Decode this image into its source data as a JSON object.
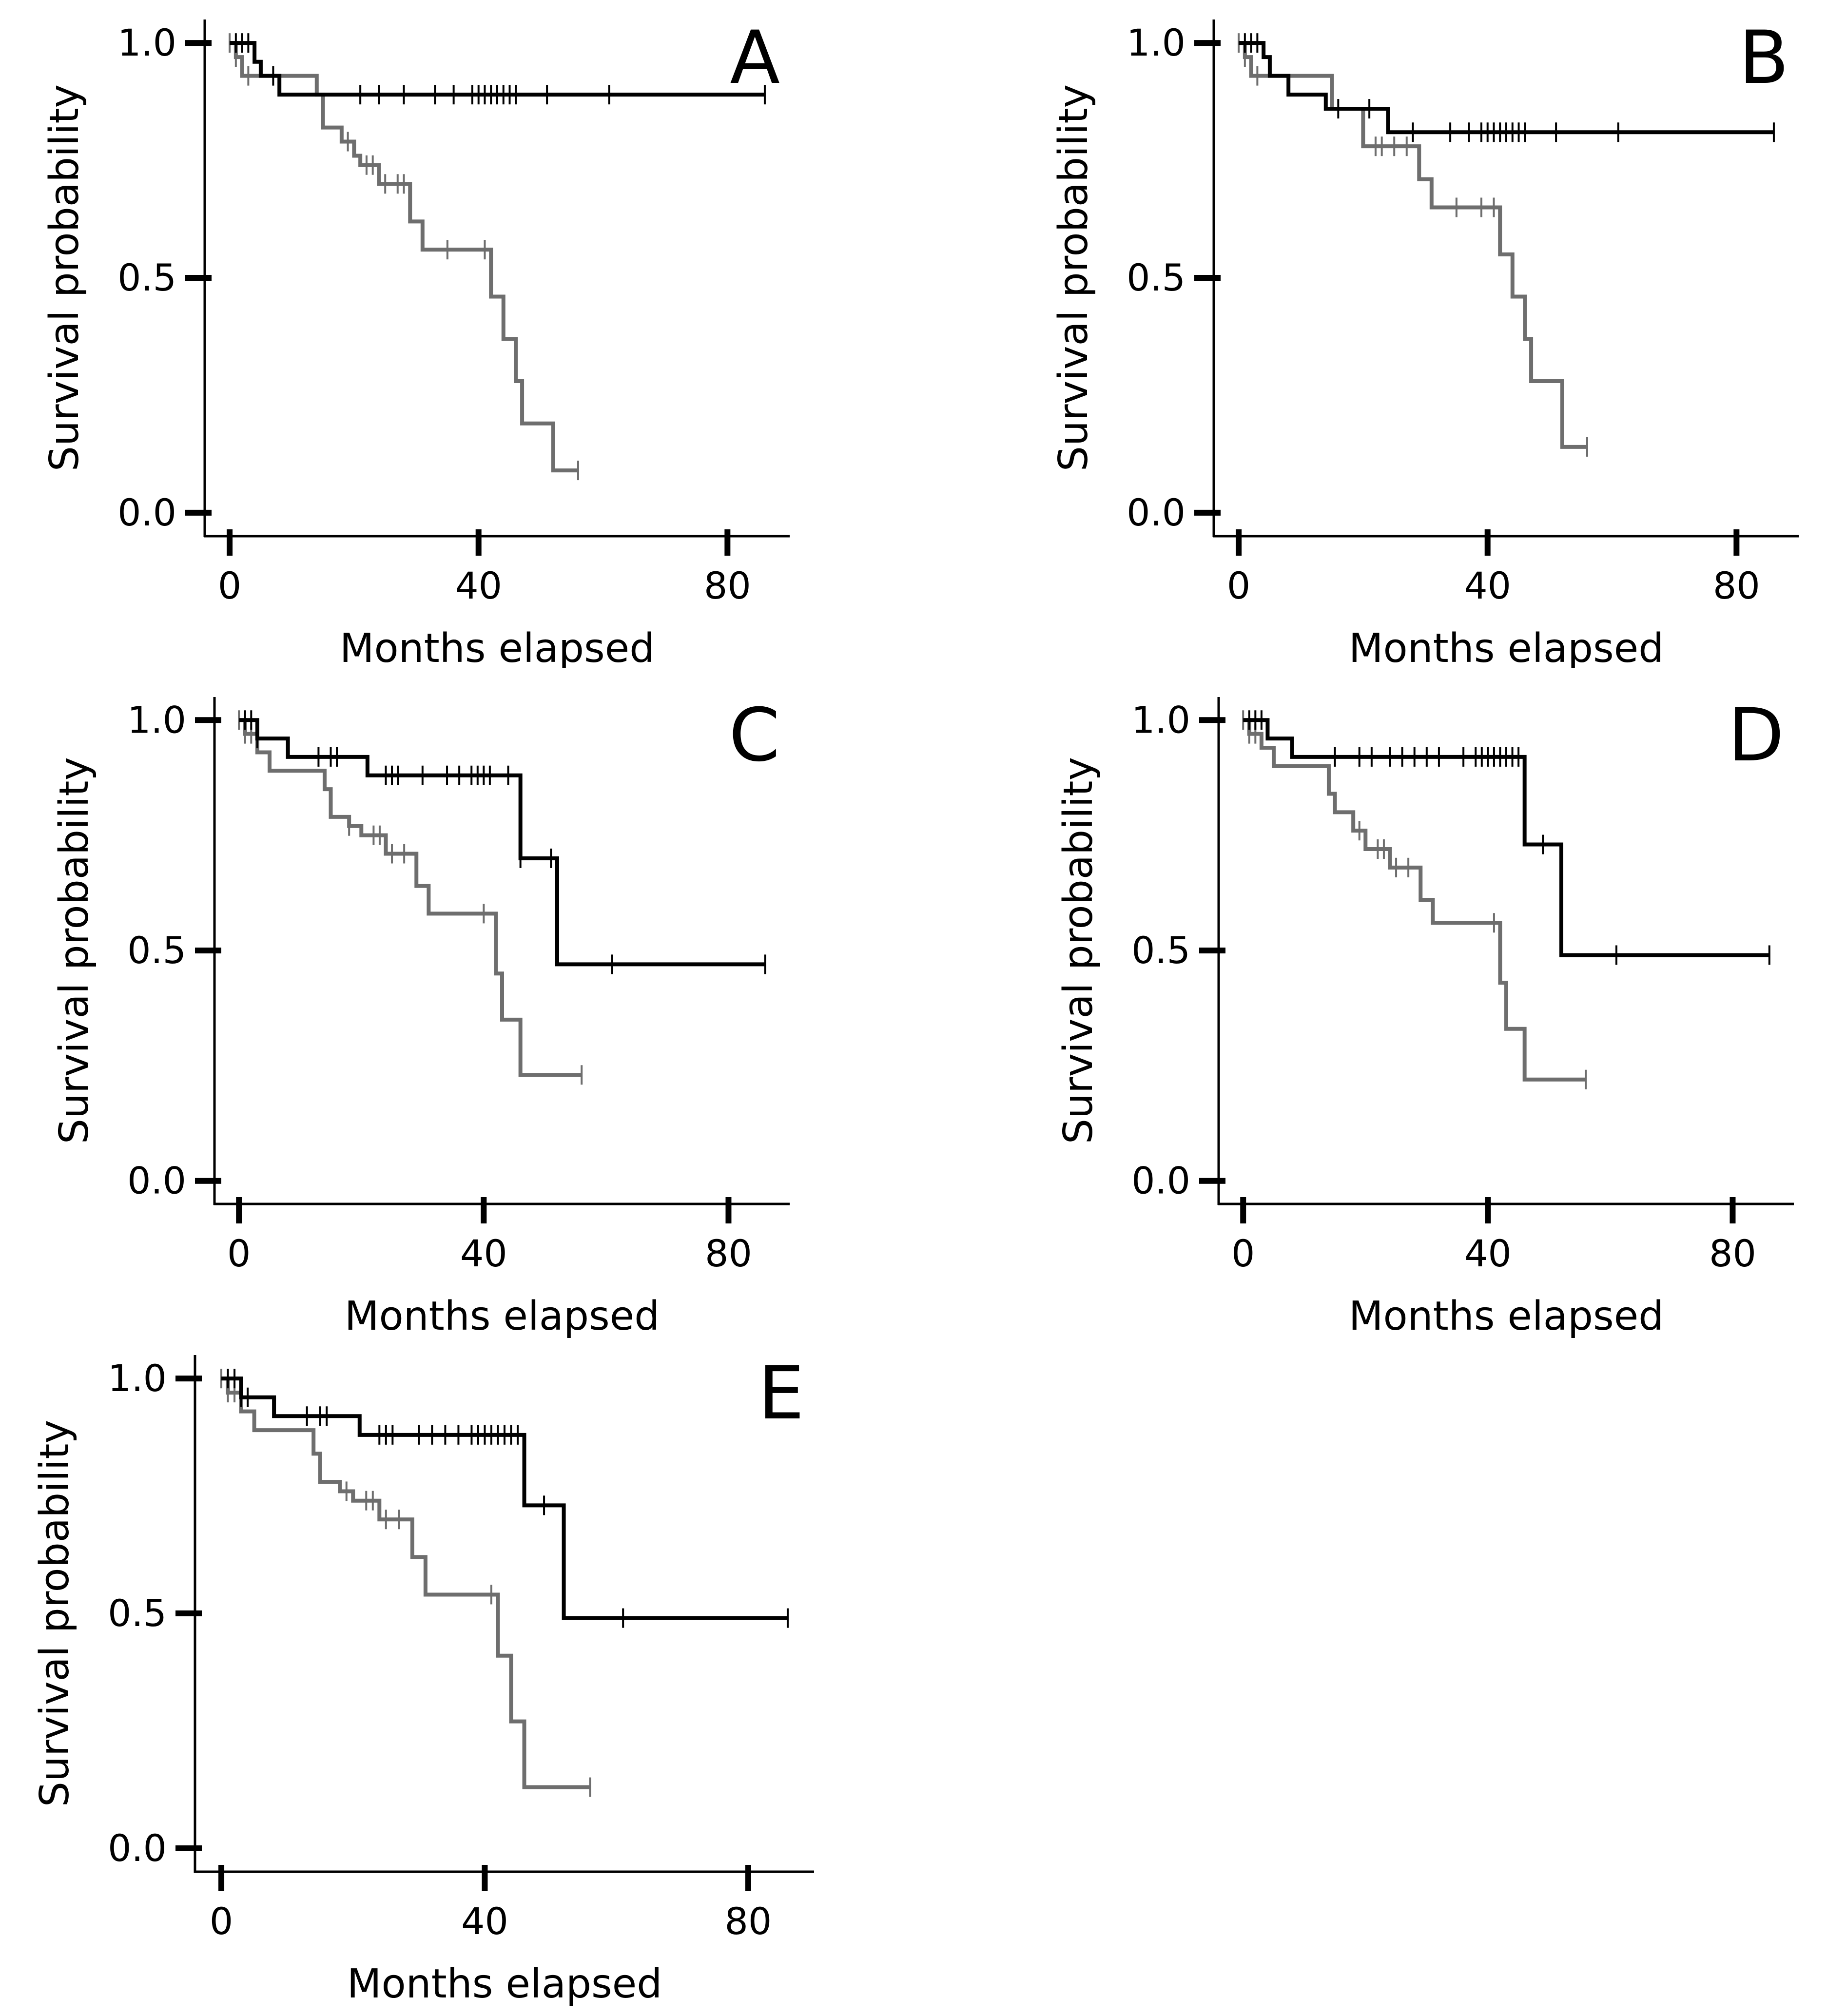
{
  "figure": {
    "series_colors": {
      "black": "#000000",
      "gray": "#6e6e6e"
    }
  },
  "chart_data": [
    {
      "panel_label": "A",
      "type": "line",
      "xlabel": "Months elapsed",
      "ylabel": "Survival probability",
      "xlim": [
        -4,
        90
      ],
      "ylim": [
        -0.05,
        1.05
      ],
      "xticks": [
        0,
        40,
        80
      ],
      "xtick_labels": [
        "0",
        "40",
        "80"
      ],
      "yticks": [
        0.0,
        0.5,
        1.0
      ],
      "ytick_labels": [
        "0.0",
        "0.5",
        "1.0"
      ],
      "grid": false,
      "series": [
        {
          "name": "black",
          "color": "#000000",
          "steps": [
            [
              0,
              1.0
            ],
            [
              4,
              0.96
            ],
            [
              5,
              0.93
            ],
            [
              8,
              0.89
            ],
            [
              86,
              0.89
            ]
          ],
          "censor": [
            1,
            2,
            3,
            7,
            21,
            24,
            28,
            33,
            36,
            39,
            40,
            41,
            42,
            43,
            44,
            45,
            46,
            51,
            61,
            86
          ]
        },
        {
          "name": "gray",
          "color": "#6e6e6e",
          "steps": [
            [
              0,
              1.0
            ],
            [
              1,
              0.97
            ],
            [
              2,
              0.93
            ],
            [
              14,
              0.89
            ],
            [
              15,
              0.82
            ],
            [
              18,
              0.79
            ],
            [
              20,
              0.76
            ],
            [
              21,
              0.74
            ],
            [
              24,
              0.7
            ],
            [
              29,
              0.62
            ],
            [
              31,
              0.56
            ],
            [
              42,
              0.46
            ],
            [
              44,
              0.37
            ],
            [
              46,
              0.28
            ],
            [
              47,
              0.19
            ],
            [
              52,
              0.09
            ],
            [
              56,
              0.09
            ]
          ],
          "censor": [
            0,
            1,
            3,
            19,
            22,
            23,
            25,
            27,
            28,
            35,
            41,
            56
          ]
        }
      ]
    },
    {
      "panel_label": "B",
      "type": "line",
      "xlabel": "Months elapsed",
      "ylabel": "Survival probability",
      "xlim": [
        -4,
        90
      ],
      "ylim": [
        -0.05,
        1.05
      ],
      "xticks": [
        0,
        40,
        80
      ],
      "xtick_labels": [
        "0",
        "40",
        "80"
      ],
      "yticks": [
        0.0,
        0.5,
        1.0
      ],
      "ytick_labels": [
        "0.0",
        "0.5",
        "1.0"
      ],
      "grid": false,
      "series": [
        {
          "name": "black",
          "color": "#000000",
          "steps": [
            [
              0,
              1.0
            ],
            [
              4,
              0.97
            ],
            [
              5,
              0.93
            ],
            [
              8,
              0.89
            ],
            [
              14,
              0.86
            ],
            [
              24,
              0.81
            ],
            [
              86,
              0.81
            ]
          ],
          "censor": [
            1,
            2,
            3,
            16,
            21,
            28,
            34,
            37,
            39,
            40,
            41,
            42,
            43,
            44,
            45,
            46,
            51,
            61,
            86
          ]
        },
        {
          "name": "gray",
          "color": "#6e6e6e",
          "steps": [
            [
              0,
              1.0
            ],
            [
              1,
              0.97
            ],
            [
              2,
              0.93
            ],
            [
              15,
              0.86
            ],
            [
              20,
              0.78
            ],
            [
              29,
              0.71
            ],
            [
              31,
              0.65
            ],
            [
              42,
              0.55
            ],
            [
              44,
              0.46
            ],
            [
              46,
              0.37
            ],
            [
              47,
              0.28
            ],
            [
              52,
              0.14
            ],
            [
              56,
              0.14
            ]
          ],
          "censor": [
            0,
            1,
            3,
            22,
            23,
            25,
            27,
            35,
            39,
            41,
            56
          ]
        }
      ]
    },
    {
      "panel_label": "C",
      "type": "line",
      "xlabel": "Months elapsed",
      "ylabel": "Survival probability",
      "xlim": [
        -4,
        90
      ],
      "ylim": [
        -0.05,
        1.05
      ],
      "xticks": [
        0,
        40,
        80
      ],
      "xtick_labels": [
        "0",
        "40",
        "80"
      ],
      "yticks": [
        0.0,
        0.5,
        1.0
      ],
      "ytick_labels": [
        "0.0",
        "0.5",
        "1.0"
      ],
      "grid": false,
      "series": [
        {
          "name": "black",
          "color": "#000000",
          "steps": [
            [
              0,
              1.0
            ],
            [
              3,
              0.96
            ],
            [
              8,
              0.92
            ],
            [
              21,
              0.88
            ],
            [
              46,
              0.7
            ],
            [
              52,
              0.47
            ],
            [
              86,
              0.47
            ]
          ],
          "censor": [
            1,
            2,
            3,
            13,
            15,
            16,
            24,
            25,
            26,
            30,
            34,
            36,
            38,
            39,
            40,
            41,
            44,
            46,
            51,
            61,
            86
          ]
        },
        {
          "name": "gray",
          "color": "#6e6e6e",
          "steps": [
            [
              0,
              1.0
            ],
            [
              1,
              0.97
            ],
            [
              3,
              0.93
            ],
            [
              5,
              0.89
            ],
            [
              14,
              0.85
            ],
            [
              15,
              0.79
            ],
            [
              18,
              0.77
            ],
            [
              20,
              0.75
            ],
            [
              24,
              0.71
            ],
            [
              29,
              0.64
            ],
            [
              31,
              0.58
            ],
            [
              42,
              0.45
            ],
            [
              43,
              0.35
            ],
            [
              46,
              0.23
            ],
            [
              56,
              0.23
            ]
          ],
          "censor": [
            0,
            1,
            2,
            18,
            22,
            23,
            25,
            27,
            40,
            56
          ]
        }
      ]
    },
    {
      "panel_label": "D",
      "type": "line",
      "xlabel": "Months elapsed",
      "ylabel": "Survival probability",
      "xlim": [
        -4,
        90
      ],
      "ylim": [
        -0.05,
        1.05
      ],
      "xticks": [
        0,
        40,
        80
      ],
      "xtick_labels": [
        "0",
        "40",
        "80"
      ],
      "yticks": [
        0.0,
        0.5,
        1.0
      ],
      "ytick_labels": [
        "0.0",
        "0.5",
        "1.0"
      ],
      "grid": false,
      "series": [
        {
          "name": "black",
          "color": "#000000",
          "steps": [
            [
              0,
              1.0
            ],
            [
              4,
              0.96
            ],
            [
              8,
              0.92
            ],
            [
              46,
              0.73
            ],
            [
              52,
              0.49
            ],
            [
              86,
              0.49
            ]
          ],
          "censor": [
            1,
            2,
            3,
            15,
            19,
            21,
            24,
            26,
            28,
            30,
            32,
            36,
            38,
            39,
            40,
            41,
            42,
            43,
            44,
            45,
            49,
            61,
            86
          ]
        },
        {
          "name": "gray",
          "color": "#6e6e6e",
          "steps": [
            [
              0,
              1.0
            ],
            [
              1,
              0.97
            ],
            [
              3,
              0.94
            ],
            [
              5,
              0.9
            ],
            [
              14,
              0.84
            ],
            [
              15,
              0.8
            ],
            [
              18,
              0.76
            ],
            [
              20,
              0.72
            ],
            [
              24,
              0.68
            ],
            [
              29,
              0.61
            ],
            [
              31,
              0.56
            ],
            [
              42,
              0.43
            ],
            [
              43,
              0.33
            ],
            [
              46,
              0.22
            ],
            [
              56,
              0.22
            ]
          ],
          "censor": [
            0,
            1,
            2,
            19,
            22,
            23,
            25,
            27,
            41,
            56
          ]
        }
      ]
    },
    {
      "panel_label": "E",
      "type": "line",
      "xlabel": "Months elapsed",
      "ylabel": "Survival probability",
      "xlim": [
        -4,
        90
      ],
      "ylim": [
        -0.05,
        1.05
      ],
      "xticks": [
        0,
        40,
        80
      ],
      "xtick_labels": [
        "0",
        "40",
        "80"
      ],
      "yticks": [
        0.0,
        0.5,
        1.0
      ],
      "ytick_labels": [
        "0.0",
        "0.5",
        "1.0"
      ],
      "grid": false,
      "series": [
        {
          "name": "black",
          "color": "#000000",
          "steps": [
            [
              0,
              1.0
            ],
            [
              3,
              0.96
            ],
            [
              8,
              0.92
            ],
            [
              21,
              0.88
            ],
            [
              46,
              0.73
            ],
            [
              52,
              0.49
            ],
            [
              86,
              0.49
            ]
          ],
          "censor": [
            1,
            2,
            3,
            4,
            13,
            15,
            16,
            24,
            25,
            26,
            30,
            32,
            34,
            36,
            38,
            39,
            40,
            41,
            42,
            43,
            44,
            45,
            49,
            61,
            86
          ]
        },
        {
          "name": "gray",
          "color": "#6e6e6e",
          "steps": [
            [
              0,
              1.0
            ],
            [
              1,
              0.97
            ],
            [
              3,
              0.93
            ],
            [
              5,
              0.89
            ],
            [
              14,
              0.84
            ],
            [
              15,
              0.78
            ],
            [
              18,
              0.76
            ],
            [
              20,
              0.74
            ],
            [
              24,
              0.7
            ],
            [
              29,
              0.62
            ],
            [
              31,
              0.54
            ],
            [
              42,
              0.41
            ],
            [
              44,
              0.27
            ],
            [
              46,
              0.13
            ],
            [
              56,
              0.13
            ]
          ],
          "censor": [
            0,
            1,
            2,
            19,
            22,
            23,
            25,
            27,
            41,
            56
          ]
        }
      ]
    }
  ]
}
